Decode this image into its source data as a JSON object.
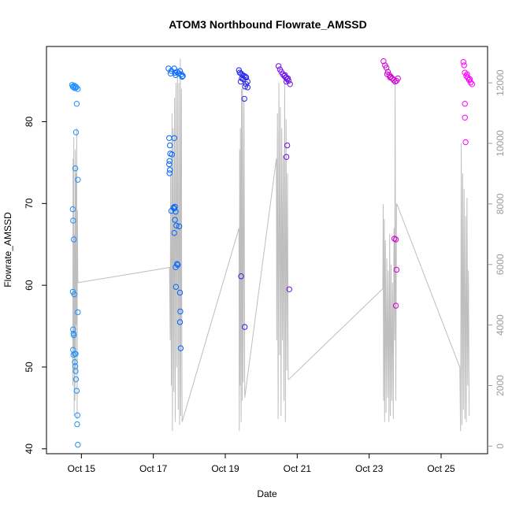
{
  "chart_data": {
    "type": "scatter",
    "title": "ATOM3 Northbound Flowrate_AMSSD",
    "xlabel": "Date",
    "ylabel": "Flowrate_AMSSD",
    "x_ticks": [
      {
        "day": 15,
        "label": "Oct 15"
      },
      {
        "day": 17,
        "label": "Oct 17"
      },
      {
        "day": 19,
        "label": "Oct 19"
      },
      {
        "day": 21,
        "label": "Oct 21"
      },
      {
        "day": 23,
        "label": "Oct 23"
      },
      {
        "day": 25,
        "label": "Oct 25"
      }
    ],
    "xlim": [
      "2023-10-14 00:42",
      "2023-10-26 07:00"
    ],
    "ylim": [
      39.4,
      89.2
    ],
    "y_ticks": [
      40,
      50,
      60,
      70,
      80
    ],
    "y2lim": [
      -250,
      13200
    ],
    "y2_ticks": [
      0,
      2000,
      4000,
      6000,
      8000,
      10000,
      12000
    ],
    "grid": false,
    "series": [
      {
        "color": "#1e90ff",
        "marker": "open-circle",
        "points": [
          [
            14.74,
            84.5
          ],
          [
            14.76,
            84.3
          ],
          [
            14.78,
            84.2
          ],
          [
            14.8,
            84.4
          ],
          [
            14.82,
            84.1
          ],
          [
            14.84,
            84.3
          ],
          [
            14.86,
            84.2
          ],
          [
            14.9,
            84.0
          ],
          [
            14.76,
            69.3
          ],
          [
            14.77,
            67.9
          ],
          [
            14.79,
            65.6
          ],
          [
            14.76,
            59.2
          ],
          [
            14.8,
            58.9
          ],
          [
            14.77,
            54.6
          ],
          [
            14.78,
            54.1
          ],
          [
            14.79,
            53.9
          ],
          [
            14.77,
            52.1
          ],
          [
            14.78,
            51.5
          ],
          [
            14.82,
            51.6
          ],
          [
            14.84,
            51.6
          ],
          [
            14.82,
            50.6
          ],
          [
            14.83,
            50.1
          ],
          [
            14.84,
            49.5
          ],
          [
            14.85,
            48.5
          ],
          [
            14.87,
            47.1
          ],
          [
            14.89,
            44.1
          ],
          [
            14.88,
            43.0
          ],
          [
            14.9,
            40.5
          ],
          [
            14.83,
            74.3
          ],
          [
            14.87,
            82.2
          ],
          [
            14.85,
            78.7
          ],
          [
            14.9,
            72.9
          ],
          [
            14.9,
            56.7
          ]
        ]
      },
      {
        "color": "#0066ff",
        "marker": "open-circle",
        "points": [
          [
            17.42,
            86.5
          ],
          [
            17.5,
            86.2
          ],
          [
            17.58,
            86.5
          ],
          [
            17.66,
            86.1
          ],
          [
            17.74,
            86.2
          ],
          [
            17.82,
            85.6
          ],
          [
            17.48,
            85.9
          ],
          [
            17.6,
            86.0
          ],
          [
            17.7,
            85.9
          ],
          [
            17.62,
            85.7
          ],
          [
            17.78,
            85.8
          ],
          [
            17.8,
            85.5
          ],
          [
            17.44,
            78.0
          ],
          [
            17.46,
            77.1
          ],
          [
            17.47,
            76.1
          ],
          [
            17.45,
            75.2
          ],
          [
            17.44,
            74.8
          ],
          [
            17.46,
            74.1
          ],
          [
            17.45,
            73.7
          ],
          [
            17.58,
            78.0
          ],
          [
            17.52,
            76.0
          ],
          [
            17.5,
            69.1
          ],
          [
            17.56,
            69.5
          ],
          [
            17.6,
            69.6
          ],
          [
            17.58,
            69.4
          ],
          [
            17.62,
            69.0
          ],
          [
            17.6,
            68.0
          ],
          [
            17.64,
            67.3
          ],
          [
            17.72,
            67.2
          ],
          [
            17.58,
            66.4
          ],
          [
            17.66,
            62.6
          ],
          [
            17.68,
            62.5
          ],
          [
            17.62,
            62.2
          ],
          [
            17.63,
            59.8
          ],
          [
            17.74,
            59.1
          ],
          [
            17.75,
            56.8
          ],
          [
            17.74,
            55.5
          ],
          [
            17.76,
            52.3
          ]
        ]
      },
      {
        "color": "#2626e8",
        "marker": "open-circle",
        "points": [
          [
            19.38,
            86.3
          ],
          [
            19.4,
            86.0
          ],
          [
            19.44,
            85.9
          ],
          [
            19.48,
            85.7
          ],
          [
            19.52,
            85.6
          ],
          [
            19.56,
            85.5
          ],
          [
            19.46,
            85.3
          ],
          [
            19.5,
            85.2
          ],
          [
            19.43,
            84.9
          ],
          [
            19.58,
            85.4
          ],
          [
            19.58,
            84.6
          ],
          [
            19.55,
            84.3
          ],
          [
            19.62,
            84.9
          ],
          [
            19.62,
            84.2
          ],
          [
            19.53,
            82.8
          ],
          [
            19.44,
            61.1
          ],
          [
            19.54,
            54.9
          ]
        ]
      },
      {
        "color": "#6f10e8",
        "marker": "open-circle",
        "points": [
          [
            20.48,
            86.8
          ],
          [
            20.52,
            86.4
          ],
          [
            20.56,
            86.1
          ],
          [
            20.6,
            85.8
          ],
          [
            20.64,
            85.6
          ],
          [
            20.68,
            85.4
          ],
          [
            20.72,
            85.2
          ],
          [
            20.76,
            85.0
          ],
          [
            20.8,
            84.6
          ],
          [
            20.7,
            84.9
          ],
          [
            20.74,
            85.3
          ],
          [
            20.66,
            85.7
          ],
          [
            20.72,
            77.1
          ],
          [
            20.7,
            75.7
          ],
          [
            20.78,
            59.5
          ]
        ]
      },
      {
        "color": "#d400d4",
        "marker": "open-circle",
        "points": [
          [
            23.4,
            87.4
          ],
          [
            23.44,
            86.9
          ],
          [
            23.48,
            86.6
          ],
          [
            23.52,
            86.1
          ],
          [
            23.56,
            85.7
          ],
          [
            23.6,
            85.5
          ],
          [
            23.64,
            85.3
          ],
          [
            23.68,
            85.1
          ],
          [
            23.72,
            84.9
          ],
          [
            23.76,
            85.0
          ],
          [
            23.8,
            85.3
          ],
          [
            23.5,
            85.8
          ],
          [
            23.58,
            85.4
          ],
          [
            23.7,
            65.7
          ],
          [
            23.74,
            65.6
          ],
          [
            23.76,
            61.9
          ],
          [
            23.74,
            57.5
          ]
        ]
      },
      {
        "color": "#ff00ff",
        "marker": "open-circle",
        "points": [
          [
            25.62,
            87.3
          ],
          [
            25.64,
            86.9
          ],
          [
            25.66,
            86.0
          ],
          [
            25.7,
            85.6
          ],
          [
            25.74,
            85.4
          ],
          [
            25.78,
            85.1
          ],
          [
            25.82,
            84.8
          ],
          [
            25.86,
            84.6
          ],
          [
            25.72,
            85.8
          ],
          [
            25.8,
            85.2
          ],
          [
            25.66,
            82.2
          ],
          [
            25.66,
            80.5
          ],
          [
            25.68,
            77.5
          ]
        ]
      },
      {
        "color": "#bebebe",
        "marker": "line",
        "axis": "right",
        "points": [
          [
            14.76,
            2000
          ],
          [
            14.77,
            9500
          ],
          [
            14.78,
            3000
          ],
          [
            14.79,
            10200
          ],
          [
            14.8,
            1000
          ],
          [
            14.81,
            7000
          ],
          [
            14.82,
            1500
          ],
          [
            14.83,
            9800
          ],
          [
            14.84,
            2500
          ],
          [
            14.85,
            9000
          ],
          [
            14.86,
            4000
          ],
          [
            14.87,
            10500
          ],
          [
            14.88,
            900
          ],
          [
            14.89,
            7800
          ],
          [
            14.9,
            5500
          ],
          [
            14.91,
            5400
          ],
          [
            17.45,
            5900
          ],
          [
            17.47,
            3500
          ],
          [
            17.48,
            9000
          ],
          [
            17.5,
            2000
          ],
          [
            17.52,
            11000
          ],
          [
            17.53,
            500
          ],
          [
            17.55,
            10500
          ],
          [
            17.57,
            1800
          ],
          [
            17.59,
            11500
          ],
          [
            17.61,
            800
          ],
          [
            17.63,
            12000
          ],
          [
            17.65,
            2600
          ],
          [
            17.67,
            12300
          ],
          [
            17.69,
            1200
          ],
          [
            17.71,
            12000
          ],
          [
            17.73,
            700
          ],
          [
            17.75,
            12800
          ],
          [
            17.76,
            1000
          ],
          [
            17.78,
            11800
          ],
          [
            17.79,
            5000
          ],
          [
            17.8,
            800
          ],
          [
            19.38,
            7200
          ],
          [
            19.39,
            500
          ],
          [
            19.4,
            9800
          ],
          [
            19.41,
            2000
          ],
          [
            19.42,
            10500
          ],
          [
            19.44,
            800
          ],
          [
            19.45,
            11800
          ],
          [
            19.47,
            1500
          ],
          [
            19.48,
            12000
          ],
          [
            19.5,
            2100
          ],
          [
            19.52,
            11500
          ],
          [
            19.54,
            1600
          ],
          [
            20.42,
            9500
          ],
          [
            20.43,
            3500
          ],
          [
            20.45,
            11000
          ],
          [
            20.47,
            900
          ],
          [
            20.49,
            12000
          ],
          [
            20.51,
            3000
          ],
          [
            20.53,
            11200
          ],
          [
            20.55,
            1000
          ],
          [
            20.57,
            10500
          ],
          [
            20.59,
            3500
          ],
          [
            20.61,
            9600
          ],
          [
            20.63,
            1500
          ],
          [
            20.65,
            12000
          ],
          [
            20.67,
            800
          ],
          [
            20.69,
            10800
          ],
          [
            20.71,
            2500
          ],
          [
            20.73,
            9000
          ],
          [
            20.75,
            2200
          ],
          [
            20.76,
            2200
          ],
          [
            23.38,
            5200
          ],
          [
            23.39,
            8000
          ],
          [
            23.4,
            1500
          ],
          [
            23.42,
            7500
          ],
          [
            23.43,
            800
          ],
          [
            23.45,
            6800
          ],
          [
            23.47,
            1100
          ],
          [
            23.49,
            6200
          ],
          [
            23.51,
            1600
          ],
          [
            23.53,
            5800
          ],
          [
            23.55,
            800
          ],
          [
            23.57,
            7000
          ],
          [
            23.59,
            1000
          ],
          [
            23.61,
            6000
          ],
          [
            23.63,
            1500
          ],
          [
            23.65,
            5400
          ],
          [
            23.67,
            900
          ],
          [
            23.69,
            7200
          ],
          [
            23.71,
            3500
          ],
          [
            23.72,
            12200
          ],
          [
            23.74,
            1500
          ],
          [
            23.76,
            8000
          ],
          [
            23.77,
            8000
          ],
          [
            25.52,
            2600
          ],
          [
            25.54,
            500
          ],
          [
            25.56,
            10000
          ],
          [
            25.58,
            700
          ],
          [
            25.6,
            9000
          ],
          [
            25.62,
            1200
          ],
          [
            25.64,
            8500
          ],
          [
            25.66,
            900
          ],
          [
            25.68,
            7600
          ],
          [
            25.7,
            800
          ],
          [
            25.72,
            8200
          ],
          [
            25.74,
            2000
          ],
          [
            25.76,
            5800
          ],
          [
            25.78,
            1000
          ]
        ]
      }
    ]
  }
}
